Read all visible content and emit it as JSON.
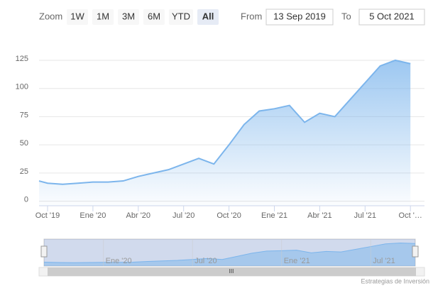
{
  "chart_data": {
    "type": "area",
    "color": "#7cb5ec",
    "categories": [
      null,
      "Oct '19",
      null,
      null,
      "Ene '20",
      null,
      null,
      "Abr '20",
      null,
      null,
      "Jul '20",
      null,
      null,
      "Oct '20",
      null,
      null,
      "Ene '21",
      null,
      null,
      "Abr '21",
      null,
      null,
      "Jul '21",
      null,
      null,
      "Oct '…"
    ],
    "values": [
      18,
      16,
      15,
      16,
      17,
      17,
      18,
      22,
      25,
      28,
      33,
      38,
      33,
      50,
      68,
      80,
      82,
      85,
      70,
      78,
      75,
      90,
      105,
      120,
      125,
      122
    ],
    "ylim": [
      -4,
      147
    ],
    "yticks": [
      0,
      25,
      50,
      75,
      100,
      125
    ],
    "grid": true,
    "range_selector": {
      "zoom_label": "Zoom",
      "buttons": [
        "1W",
        "1M",
        "3M",
        "6M",
        "YTD",
        "All"
      ],
      "selected": 5,
      "from_label": "From",
      "from": "13 Sep 2019",
      "to_label": "To",
      "to": "5 Oct 2021"
    },
    "credit": "Estrategias de Inversión"
  }
}
